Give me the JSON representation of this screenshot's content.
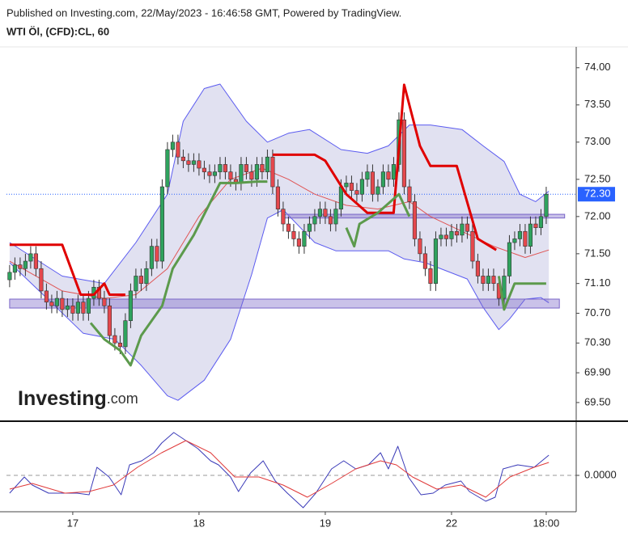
{
  "header": {
    "published": "Published on Investing.com, 22/May/2023 - 16:46:58 GMT, Powered by TradingView.",
    "symbol": "WTI Öl, (CFD):CL, 60"
  },
  "logo": {
    "text": "Investing",
    "suffix": ".com"
  },
  "chart_data": [
    {
      "type": "candlestick",
      "xlim": [
        -0.6,
        107.7
      ],
      "xticks": [
        {
          "value": 12,
          "label": "17"
        },
        {
          "value": 36,
          "label": "18"
        },
        {
          "value": 60,
          "label": "19"
        },
        {
          "value": 84,
          "label": "22"
        },
        {
          "value": 102,
          "label": "18:00"
        }
      ],
      "ylim": [
        69.26,
        74.28
      ],
      "yticks": [
        {
          "value": 74,
          "label": "74.00"
        },
        {
          "value": 73.5,
          "label": "73.50"
        },
        {
          "value": 73,
          "label": "73.00"
        },
        {
          "value": 72.5,
          "label": "72.50"
        },
        {
          "value": 72,
          "label": "72.00"
        },
        {
          "value": 71.5,
          "label": "71.50"
        },
        {
          "value": 71.1,
          "label": "71.10"
        },
        {
          "value": 70.7,
          "label": "70.70"
        },
        {
          "value": 70.3,
          "label": "70.30"
        },
        {
          "value": 69.9,
          "label": "69.90"
        },
        {
          "value": 69.5,
          "label": "69.50"
        }
      ],
      "up_color": "#2fa35e",
      "down_color": "#e5484d",
      "open": [
        71.15,
        71.25,
        71.35,
        71.3,
        71.4,
        71.5,
        71.3,
        71.0,
        70.85,
        70.8,
        70.9,
        70.75,
        70.8,
        70.7,
        70.85,
        70.7,
        70.9,
        71.05,
        70.9,
        70.8,
        70.4,
        70.3,
        70.25,
        70.6,
        71.0,
        71.2,
        71.1,
        71.3,
        71.6,
        71.4,
        72.4,
        72.9,
        73.0,
        72.8,
        72.75,
        72.7,
        72.75,
        72.65,
        72.6,
        72.55,
        72.6,
        72.7,
        72.6,
        72.5,
        72.45,
        72.7,
        72.6,
        72.5,
        72.7,
        72.6,
        72.8,
        72.4,
        72.1,
        71.9,
        71.8,
        71.7,
        71.6,
        71.8,
        71.9,
        72.0,
        72.1,
        72.0,
        71.9,
        72.1,
        72.4,
        72.45,
        72.35,
        72.3,
        72.5,
        72.6,
        72.3,
        72.4,
        72.6,
        72.5,
        72.7,
        73.3,
        72.4,
        72.2,
        71.7,
        71.5,
        71.3,
        71.1,
        71.7,
        71.75,
        71.7,
        71.8,
        71.75,
        71.9,
        71.8,
        71.4,
        71.2,
        71.1,
        71.2,
        71.1,
        70.9,
        71.2,
        71.65,
        71.7,
        71.8,
        71.6,
        71.9,
        71.85,
        72.0
      ],
      "high": [
        71.35,
        71.45,
        71.45,
        71.5,
        71.6,
        71.6,
        71.4,
        71.1,
        70.95,
        71.0,
        71.0,
        70.9,
        70.9,
        70.95,
        70.95,
        71.0,
        71.15,
        71.15,
        71.0,
        70.9,
        70.5,
        70.4,
        70.7,
        71.1,
        71.3,
        71.3,
        71.4,
        71.7,
        71.7,
        72.5,
        73.0,
        73.1,
        73.1,
        72.9,
        72.85,
        72.85,
        72.85,
        72.75,
        72.7,
        72.7,
        72.8,
        72.8,
        72.7,
        72.6,
        72.8,
        72.8,
        72.7,
        72.8,
        72.8,
        72.9,
        72.9,
        72.5,
        72.2,
        72.0,
        71.9,
        71.8,
        71.9,
        72.0,
        72.1,
        72.2,
        72.2,
        72.1,
        72.2,
        72.5,
        72.55,
        72.55,
        72.45,
        72.6,
        72.7,
        72.7,
        72.5,
        72.7,
        72.7,
        72.8,
        73.4,
        73.4,
        72.5,
        72.3,
        71.8,
        71.6,
        71.4,
        71.8,
        71.85,
        71.85,
        71.9,
        71.9,
        72.0,
        72.0,
        71.9,
        71.5,
        71.3,
        71.3,
        71.3,
        71.2,
        71.3,
        71.75,
        71.8,
        71.9,
        71.9,
        72.0,
        72.0,
        72.1,
        72.4
      ],
      "low": [
        71.05,
        71.15,
        71.2,
        71.2,
        71.3,
        71.2,
        70.9,
        70.75,
        70.7,
        70.7,
        70.65,
        70.65,
        70.6,
        70.6,
        70.6,
        70.6,
        70.8,
        70.8,
        70.7,
        70.3,
        70.2,
        70.15,
        70.15,
        70.5,
        70.9,
        71.0,
        71.0,
        71.2,
        71.3,
        71.3,
        72.3,
        72.8,
        72.7,
        72.65,
        72.6,
        72.6,
        72.55,
        72.5,
        72.45,
        72.45,
        72.5,
        72.5,
        72.4,
        72.35,
        72.35,
        72.5,
        72.4,
        72.4,
        72.5,
        72.5,
        72.3,
        72.0,
        71.8,
        71.7,
        71.6,
        71.5,
        71.5,
        71.7,
        71.8,
        71.9,
        71.9,
        71.8,
        71.8,
        72.0,
        72.3,
        72.25,
        72.2,
        72.2,
        72.4,
        72.2,
        72.2,
        72.3,
        72.4,
        72.4,
        72.6,
        72.3,
        72.1,
        71.6,
        71.4,
        71.2,
        71.0,
        71.0,
        71.6,
        71.6,
        71.6,
        71.65,
        71.65,
        71.7,
        71.3,
        71.1,
        71.0,
        71.0,
        71.0,
        70.8,
        70.8,
        71.1,
        71.55,
        71.6,
        71.5,
        71.5,
        71.75,
        71.75,
        71.9
      ],
      "close": [
        71.25,
        71.35,
        71.3,
        71.4,
        71.5,
        71.3,
        71.0,
        70.85,
        70.8,
        70.9,
        70.75,
        70.8,
        70.7,
        70.85,
        70.7,
        70.9,
        71.05,
        70.9,
        70.8,
        70.4,
        70.3,
        70.25,
        70.6,
        71.0,
        71.2,
        71.1,
        71.3,
        71.6,
        71.4,
        72.4,
        72.9,
        73.0,
        72.8,
        72.75,
        72.7,
        72.75,
        72.65,
        72.6,
        72.55,
        72.6,
        72.7,
        72.6,
        72.5,
        72.45,
        72.7,
        72.6,
        72.5,
        72.7,
        72.6,
        72.8,
        72.4,
        72.1,
        71.9,
        71.8,
        71.7,
        71.6,
        71.8,
        71.9,
        72.0,
        72.1,
        72.0,
        71.9,
        72.1,
        72.4,
        72.45,
        72.35,
        72.3,
        72.5,
        72.6,
        72.3,
        72.4,
        72.6,
        72.5,
        72.7,
        73.3,
        72.4,
        72.2,
        71.7,
        71.5,
        71.3,
        71.1,
        71.7,
        71.75,
        71.7,
        71.8,
        71.75,
        71.9,
        71.8,
        71.4,
        71.2,
        71.1,
        71.2,
        71.1,
        70.9,
        71.2,
        71.65,
        71.7,
        71.8,
        71.6,
        71.9,
        71.85,
        72.0,
        72.3
      ],
      "band": {
        "color": "#5b5bf0",
        "fill": "#dcdcef",
        "upper": {
          "x": [
            0,
            10,
            18,
            24,
            30,
            33,
            37,
            40,
            45,
            49,
            53,
            57,
            63,
            68,
            72,
            76,
            80,
            86,
            90,
            94,
            97,
            100,
            102.5
          ],
          "values": [
            71.65,
            71.2,
            71.1,
            71.65,
            72.3,
            73.28,
            73.72,
            73.78,
            73.28,
            73.0,
            73.12,
            73.17,
            72.9,
            72.85,
            72.95,
            73.23,
            73.23,
            73.17,
            72.95,
            72.74,
            72.3,
            72.2,
            72.34
          ]
        },
        "lower": {
          "x": [
            0,
            8,
            14,
            20,
            25,
            30,
            32,
            37,
            42,
            46,
            49,
            52,
            58,
            62,
            65,
            72,
            75,
            79,
            83,
            87,
            90,
            93,
            95,
            98,
            101,
            102.5
          ],
          "values": [
            71.38,
            70.84,
            70.43,
            70.35,
            70.0,
            69.59,
            69.53,
            69.8,
            70.35,
            71.22,
            71.98,
            72.09,
            71.65,
            71.54,
            71.54,
            71.54,
            71.43,
            71.38,
            71.27,
            71.16,
            70.78,
            70.48,
            70.62,
            70.89,
            70.91,
            70.84
          ]
        }
      },
      "lines": [
        {
          "color": "#e05555",
          "width": 1,
          "x": [
            0,
            10,
            18,
            24,
            30,
            36,
            42,
            48,
            53,
            58,
            64,
            70,
            76,
            80,
            86,
            92,
            98,
            102.5
          ],
          "values": [
            71.4,
            71.0,
            70.9,
            70.95,
            71.3,
            72.0,
            72.5,
            72.65,
            72.5,
            72.3,
            72.15,
            72.1,
            72.2,
            72.0,
            71.8,
            71.6,
            71.45,
            71.55
          ]
        },
        {
          "color": "#e00000",
          "width": 3,
          "x": [
            0,
            10,
            13.5,
            16,
            18,
            19,
            22,
            35,
            50,
            58,
            60,
            64,
            68,
            73,
            75,
            78,
            80,
            85,
            89,
            92.5
          ],
          "values": [
            71.62,
            71.62,
            70.95,
            70.95,
            71.1,
            70.95,
            70.95,
            null,
            72.83,
            72.83,
            72.75,
            72.3,
            72.05,
            72.05,
            73.77,
            72.95,
            72.68,
            72.68,
            71.7,
            71.55
          ]
        },
        {
          "color": "#5c9a4c",
          "width": 3,
          "x": [
            15.4,
            18,
            21,
            23,
            25,
            29,
            31,
            35,
            40,
            43,
            47,
            49,
            55,
            64,
            65.5,
            66.5,
            70,
            74,
            76,
            85,
            93,
            94,
            96,
            102
          ],
          "values": [
            70.57,
            70.35,
            70.2,
            70.0,
            70.4,
            70.8,
            71.3,
            71.75,
            72.45,
            72.45,
            72.47,
            72.47,
            null,
            71.85,
            71.6,
            71.9,
            72.05,
            72.3,
            72.0,
            null,
            71.2,
            70.75,
            71.1,
            71.1
          ]
        }
      ],
      "zones": [
        {
          "from": 71.98,
          "to": 72.03,
          "x": [
            52,
            105.5
          ]
        },
        {
          "from": 70.77,
          "to": 70.89,
          "x": [
            0,
            104.5
          ]
        }
      ],
      "zone_color": "#7a66c8",
      "last_price": {
        "value": 72.3,
        "label": "72.30"
      },
      "last_price_color": "#2962ff"
    },
    {
      "type": "line",
      "ylim": [
        -0.045,
        0.064
      ],
      "yticks": [
        {
          "value": 0,
          "label": "0.0000"
        }
      ],
      "series": [
        {
          "color": "#3a3ab8",
          "x": [
            0,
            2.8,
            4.3,
            7.4,
            10.5,
            12.8,
            15.1,
            16.6,
            18.9,
            21.2,
            22.8,
            25.1,
            27.4,
            28.9,
            31.2,
            33.5,
            35.8,
            38.2,
            39.7,
            42,
            43.5,
            45.8,
            48.2,
            50.5,
            52.8,
            55.8,
            58.2,
            61.2,
            63.5,
            65.8,
            68.2,
            70.5,
            72,
            73.8,
            75.8,
            78.2,
            80.5,
            82.8,
            85.8,
            87.4,
            90.5,
            92.3,
            93.8,
            96.6,
            99.7,
            102.5
          ],
          "values": [
            -0.022,
            -0.002,
            -0.012,
            -0.022,
            -0.022,
            -0.022,
            -0.024,
            0.01,
            -0.002,
            -0.024,
            0.013,
            0.018,
            0.028,
            0.04,
            0.053,
            0.043,
            0.033,
            0.018,
            0.013,
            -0.002,
            -0.02,
            0.003,
            0.018,
            -0.007,
            -0.022,
            -0.04,
            -0.022,
            0.008,
            0.018,
            0.008,
            0.013,
            0.028,
            0.008,
            0.036,
            -0.002,
            -0.024,
            -0.022,
            -0.012,
            -0.007,
            -0.02,
            -0.032,
            -0.027,
            0.008,
            0.013,
            0.01,
            0.025
          ]
        },
        {
          "color": "#e03a3a",
          "x": [
            0,
            4.3,
            10.5,
            15.1,
            19.7,
            24.3,
            28.9,
            33.5,
            38.2,
            42.8,
            47.4,
            52,
            56.6,
            61.2,
            65.8,
            70.5,
            73.5,
            76.6,
            81.2,
            85.8,
            90.5,
            95.1,
            99.7,
            102.5
          ],
          "values": [
            -0.017,
            -0.01,
            -0.022,
            -0.02,
            -0.012,
            0.01,
            0.028,
            0.043,
            0.028,
            -0.002,
            -0.002,
            -0.012,
            -0.027,
            -0.01,
            0.008,
            0.018,
            0.013,
            -0.002,
            -0.017,
            -0.012,
            -0.027,
            -0.002,
            0.01,
            0.016
          ]
        }
      ]
    }
  ]
}
